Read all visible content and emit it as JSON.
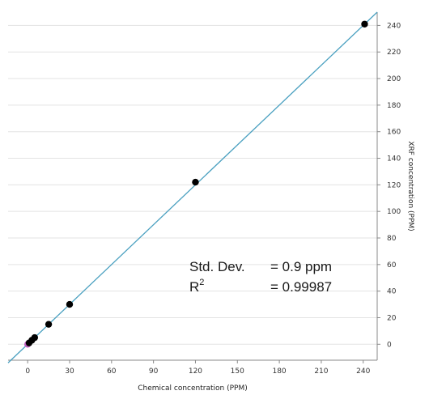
{
  "chart_data": {
    "type": "scatter",
    "title": "",
    "xlabel": "Chemical concentration (PPM)",
    "ylabel": "XRF concentration (PPM)",
    "xlim": [
      -14,
      250
    ],
    "ylim": [
      -12,
      250
    ],
    "x_ticks": [
      0,
      30,
      60,
      90,
      120,
      150,
      180,
      210,
      240
    ],
    "y_ticks": [
      0,
      20,
      40,
      60,
      80,
      100,
      120,
      140,
      160,
      180,
      200,
      220,
      240
    ],
    "y_axis_position": "right",
    "grid": "horizontal",
    "points": [
      {
        "x": 0,
        "y": 0,
        "color": "#c060c0"
      },
      {
        "x": 1,
        "y": 1,
        "color": "#000000"
      },
      {
        "x": 3,
        "y": 3,
        "color": "#000000"
      },
      {
        "x": 5,
        "y": 5,
        "color": "#000000"
      },
      {
        "x": 15,
        "y": 15,
        "color": "#000000"
      },
      {
        "x": 30,
        "y": 30,
        "color": "#000000"
      },
      {
        "x": 120,
        "y": 122,
        "color": "#000000"
      },
      {
        "x": 241,
        "y": 241,
        "color": "#000000"
      }
    ],
    "fit_line": {
      "slope": 1,
      "intercept": 0,
      "color": "#4aa0c0"
    },
    "annotations": {
      "std_dev_label": "Std. Dev.",
      "std_dev_value": "= 0.9 ppm",
      "r2_label": "R",
      "r2_sup": "2",
      "r2_value": "= 0.99987"
    }
  }
}
